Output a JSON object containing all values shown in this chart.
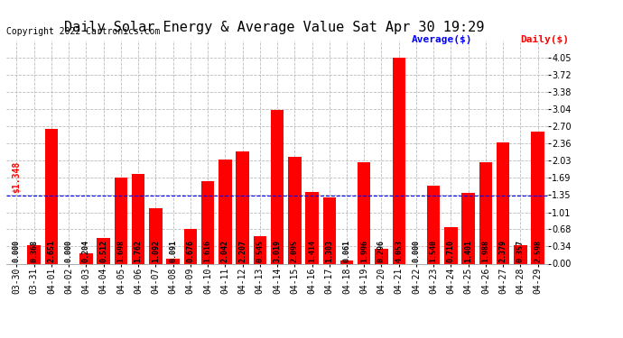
{
  "title": "Daily Solar Energy & Average Value Sat Apr 30 19:29",
  "copyright": "Copyright 2022 Cartronics.com",
  "legend_avg": "Average($)",
  "legend_daily": "Daily($)",
  "categories": [
    "03-30",
    "03-31",
    "04-01",
    "04-02",
    "04-03",
    "04-04",
    "04-05",
    "04-06",
    "04-07",
    "04-08",
    "04-09",
    "04-10",
    "04-11",
    "04-12",
    "04-13",
    "04-14",
    "04-15",
    "04-16",
    "04-17",
    "04-18",
    "04-19",
    "04-20",
    "04-21",
    "04-22",
    "04-23",
    "04-24",
    "04-25",
    "04-26",
    "04-27",
    "04-28",
    "04-29"
  ],
  "values": [
    0.0,
    0.368,
    2.651,
    0.0,
    0.204,
    0.512,
    1.698,
    1.762,
    1.092,
    0.091,
    0.676,
    1.616,
    2.042,
    2.207,
    0.545,
    3.019,
    2.095,
    1.414,
    1.303,
    0.061,
    1.996,
    0.296,
    4.053,
    0.0,
    1.54,
    0.71,
    1.401,
    1.988,
    2.379,
    0.357,
    2.598
  ],
  "average_value": 1.348,
  "average_label": "$1.348",
  "bar_color": "#ff0000",
  "avg_line_color": "#0000ff",
  "avg_label_color": "#ff0000",
  "avg_legend_color": "#0000ff",
  "background_color": "#ffffff",
  "grid_color": "#bbbbbb",
  "title_color": "#000000",
  "copyright_color": "#000000",
  "ylim": [
    0.0,
    4.39
  ],
  "yticks": [
    0.0,
    0.34,
    0.68,
    1.01,
    1.35,
    1.69,
    2.03,
    2.36,
    2.7,
    3.04,
    3.38,
    3.72,
    4.05
  ],
  "title_fontsize": 11,
  "copyright_fontsize": 7,
  "tick_fontsize": 7,
  "value_fontsize": 6,
  "avg_fontsize": 7,
  "legend_fontsize": 8
}
